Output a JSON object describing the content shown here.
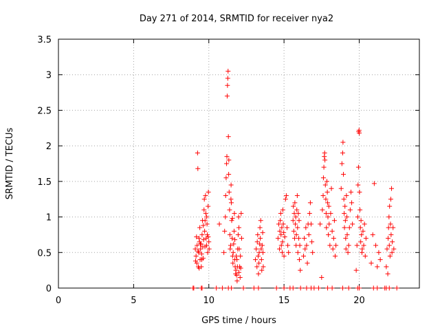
{
  "chart_data": {
    "type": "scatter",
    "title": "Day 271 of 2014, SRMTID for receiver nya2",
    "xlabel": "GPS time / hours",
    "ylabel": "SRMTID / TECUs",
    "xlim": [
      0,
      24
    ],
    "ylim": [
      0,
      3.5
    ],
    "x_ticks": [
      "0",
      "5",
      "10",
      "15",
      "20"
    ],
    "y_ticks": [
      "0",
      "0.5",
      "1",
      "1.5",
      "2",
      "2.5",
      "3",
      "3.5"
    ],
    "grid": true,
    "legend": "none",
    "marker": "plus",
    "color": "#ff0000",
    "series": [
      {
        "points": [
          [
            9.1,
            0.55
          ],
          [
            9.15,
            0.45
          ],
          [
            9.2,
            0.35
          ],
          [
            9.22,
            0.6
          ],
          [
            9.25,
            1.9
          ],
          [
            9.27,
            1.68
          ],
          [
            9.3,
            0.3
          ],
          [
            9.33,
            0.5
          ],
          [
            9.35,
            0.7
          ],
          [
            9.38,
            0.65
          ],
          [
            9.4,
            0.85
          ],
          [
            9.42,
            0.4
          ],
          [
            9.45,
            0.55
          ],
          [
            9.48,
            0.62
          ],
          [
            9.5,
            0.3
          ],
          [
            9.52,
            0.48
          ],
          [
            9.55,
            0.75
          ],
          [
            9.58,
            0.95
          ],
          [
            9.6,
            0.58
          ],
          [
            9.62,
            0.42
          ],
          [
            9.65,
            0.68
          ],
          [
            9.68,
            1.1
          ],
          [
            9.7,
            1.25
          ],
          [
            9.72,
            0.8
          ],
          [
            9.75,
            0.95
          ],
          [
            9.78,
            1.3
          ],
          [
            9.8,
            1.05
          ],
          [
            9.82,
            0.7
          ],
          [
            9.85,
            0.6
          ],
          [
            9.88,
            0.9
          ],
          [
            9.9,
            0.75
          ],
          [
            9.92,
            0.5
          ],
          [
            9.95,
            1.15
          ],
          [
            9.97,
            1.35
          ],
          [
            10.0,
            0.65
          ],
          [
            10.02,
            0.55
          ],
          [
            9.12,
            0.38
          ],
          [
            9.18,
            0.72
          ],
          [
            9.28,
            0.52
          ],
          [
            9.36,
            0.28
          ],
          [
            9.44,
            0.62
          ],
          [
            9.53,
            0.4
          ],
          [
            9.63,
            0.88
          ],
          [
            9.74,
            0.58
          ],
          [
            9.86,
            1.0
          ],
          [
            9.96,
            0.72
          ],
          [
            10.7,
            0.9
          ],
          [
            11.0,
            0.5
          ],
          [
            11.05,
            0.8
          ],
          [
            11.1,
            1.0
          ],
          [
            11.12,
            1.3
          ],
          [
            11.15,
            1.55
          ],
          [
            11.18,
            1.75
          ],
          [
            11.2,
            1.85
          ],
          [
            11.22,
            2.7
          ],
          [
            11.24,
            2.85
          ],
          [
            11.26,
            2.95
          ],
          [
            11.28,
            3.05
          ],
          [
            11.3,
            2.13
          ],
          [
            11.32,
            1.6
          ],
          [
            11.35,
            1.35
          ],
          [
            11.38,
            1.1
          ],
          [
            11.4,
            0.75
          ],
          [
            11.42,
            0.55
          ],
          [
            11.45,
            0.6
          ],
          [
            11.48,
            1.45
          ],
          [
            11.5,
            1.2
          ],
          [
            11.52,
            0.95
          ],
          [
            11.55,
            0.7
          ],
          [
            11.58,
            0.45
          ],
          [
            11.6,
            0.35
          ],
          [
            11.62,
            0.5
          ],
          [
            11.65,
            0.62
          ],
          [
            11.68,
            0.8
          ],
          [
            11.7,
            1.05
          ],
          [
            11.72,
            0.4
          ],
          [
            11.75,
            0.3
          ],
          [
            11.78,
            0.2
          ],
          [
            11.8,
            0.25
          ],
          [
            11.82,
            0.45
          ],
          [
            11.85,
            0.18
          ],
          [
            11.88,
            0.1
          ],
          [
            11.9,
            0.3
          ],
          [
            11.92,
            0.55
          ],
          [
            11.95,
            0.75
          ],
          [
            11.98,
            1.0
          ],
          [
            12.0,
            0.85
          ],
          [
            12.02,
            0.55
          ],
          [
            12.05,
            0.3
          ],
          [
            12.08,
            0.15
          ],
          [
            12.1,
            0.45
          ],
          [
            12.12,
            0.28
          ],
          [
            12.15,
            1.05
          ],
          [
            12.18,
            0.7
          ],
          [
            11.33,
            1.8
          ],
          [
            11.47,
            1.25
          ],
          [
            11.57,
            0.98
          ],
          [
            11.73,
            0.68
          ],
          [
            11.87,
            0.4
          ],
          [
            12.0,
            0.22
          ],
          [
            13.1,
            0.4
          ],
          [
            13.15,
            0.55
          ],
          [
            13.2,
            0.3
          ],
          [
            13.22,
            0.65
          ],
          [
            13.25,
            0.75
          ],
          [
            13.28,
            0.45
          ],
          [
            13.3,
            0.2
          ],
          [
            13.33,
            0.35
          ],
          [
            13.35,
            0.5
          ],
          [
            13.38,
            0.62
          ],
          [
            13.4,
            0.85
          ],
          [
            13.42,
            0.7
          ],
          [
            13.45,
            0.95
          ],
          [
            13.48,
            0.55
          ],
          [
            13.5,
            0.4
          ],
          [
            13.52,
            0.25
          ],
          [
            13.55,
            0.6
          ],
          [
            13.58,
            0.78
          ],
          [
            13.6,
            0.5
          ],
          [
            13.62,
            0.3
          ],
          [
            14.6,
            0.7
          ],
          [
            14.65,
            0.9
          ],
          [
            14.7,
            0.55
          ],
          [
            14.72,
            0.8
          ],
          [
            14.75,
            0.95
          ],
          [
            14.78,
            1.05
          ],
          [
            14.8,
            0.75
          ],
          [
            14.82,
            0.6
          ],
          [
            14.85,
            0.85
          ],
          [
            14.88,
            0.5
          ],
          [
            14.9,
            0.65
          ],
          [
            14.92,
            1.1
          ],
          [
            14.95,
            0.9
          ],
          [
            14.98,
            0.78
          ],
          [
            15.0,
            0.45
          ],
          [
            15.05,
            0.72
          ],
          [
            15.1,
            1.25
          ],
          [
            15.15,
            1.3
          ],
          [
            15.2,
            0.85
          ],
          [
            15.25,
            0.6
          ],
          [
            15.3,
            0.5
          ],
          [
            15.6,
            0.95
          ],
          [
            15.62,
            1.15
          ],
          [
            15.65,
            0.8
          ],
          [
            15.68,
            1.05
          ],
          [
            15.7,
            0.7
          ],
          [
            15.72,
            1.2
          ],
          [
            15.75,
            0.9
          ],
          [
            15.78,
            1.0
          ],
          [
            15.8,
            0.6
          ],
          [
            15.82,
            0.75
          ],
          [
            15.85,
            1.1
          ],
          [
            15.88,
            1.3
          ],
          [
            15.9,
            0.85
          ],
          [
            15.92,
            0.5
          ],
          [
            15.95,
            1.05
          ],
          [
            15.98,
            0.7
          ],
          [
            16.0,
            0.95
          ],
          [
            16.02,
            0.4
          ],
          [
            16.05,
            0.6
          ],
          [
            16.08,
            0.25
          ],
          [
            16.3,
            0.45
          ],
          [
            16.35,
            0.7
          ],
          [
            16.4,
            0.55
          ],
          [
            16.45,
            0.85
          ],
          [
            16.5,
            0.6
          ],
          [
            16.55,
            0.35
          ],
          [
            16.6,
            0.9
          ],
          [
            16.65,
            0.75
          ],
          [
            16.7,
            1.05
          ],
          [
            16.75,
            1.2
          ],
          [
            16.8,
            0.9
          ],
          [
            16.85,
            0.65
          ],
          [
            16.9,
            0.5
          ],
          [
            17.4,
            0.9
          ],
          [
            17.5,
            0.15
          ],
          [
            17.55,
            1.1
          ],
          [
            17.6,
            1.3
          ],
          [
            17.62,
            1.55
          ],
          [
            17.65,
            1.7
          ],
          [
            17.68,
            1.85
          ],
          [
            17.7,
            1.9
          ],
          [
            17.72,
            1.8
          ],
          [
            17.75,
            1.45
          ],
          [
            17.78,
            1.25
          ],
          [
            17.8,
            1.05
          ],
          [
            17.82,
            0.85
          ],
          [
            17.85,
            1.5
          ],
          [
            17.88,
            1.35
          ],
          [
            17.9,
            1.2
          ],
          [
            17.92,
            1.0
          ],
          [
            17.95,
            0.75
          ],
          [
            17.98,
            1.15
          ],
          [
            18.0,
            0.9
          ],
          [
            18.05,
            0.6
          ],
          [
            18.1,
            1.05
          ],
          [
            18.15,
            1.4
          ],
          [
            18.2,
            0.8
          ],
          [
            18.25,
            0.55
          ],
          [
            18.3,
            0.7
          ],
          [
            18.35,
            0.95
          ],
          [
            18.4,
            0.45
          ],
          [
            18.45,
            0.6
          ],
          [
            18.8,
            1.4
          ],
          [
            18.85,
            1.75
          ],
          [
            18.9,
            1.9
          ],
          [
            18.92,
            2.05
          ],
          [
            18.95,
            1.6
          ],
          [
            18.98,
            1.25
          ],
          [
            19.0,
            1.05
          ],
          [
            19.02,
            0.85
          ],
          [
            19.05,
            1.15
          ],
          [
            19.08,
            0.95
          ],
          [
            19.1,
            0.7
          ],
          [
            19.12,
            0.55
          ],
          [
            19.15,
            1.3
          ],
          [
            19.18,
            1.0
          ],
          [
            19.2,
            0.75
          ],
          [
            19.25,
            0.5
          ],
          [
            19.3,
            0.6
          ],
          [
            19.35,
            0.85
          ],
          [
            19.4,
            1.1
          ],
          [
            19.45,
            1.35
          ],
          [
            19.5,
            1.2
          ],
          [
            19.55,
            0.9
          ],
          [
            19.8,
            0.25
          ],
          [
            19.85,
            0.6
          ],
          [
            19.9,
            1.0
          ],
          [
            19.92,
            1.45
          ],
          [
            19.95,
            1.7
          ],
          [
            19.97,
            2.2
          ],
          [
            19.99,
            2.22
          ],
          [
            20.0,
            2.18
          ],
          [
            20.02,
            1.35
          ],
          [
            20.05,
            1.1
          ],
          [
            20.08,
            0.85
          ],
          [
            20.1,
            0.65
          ],
          [
            20.12,
            0.95
          ],
          [
            20.15,
            0.75
          ],
          [
            20.18,
            0.5
          ],
          [
            20.2,
            0.55
          ],
          [
            20.25,
            0.8
          ],
          [
            20.3,
            0.6
          ],
          [
            20.35,
            0.9
          ],
          [
            20.4,
            0.45
          ],
          [
            20.45,
            0.7
          ],
          [
            20.8,
            0.35
          ],
          [
            20.9,
            0.75
          ],
          [
            21.0,
            1.47
          ],
          [
            21.1,
            0.6
          ],
          [
            21.2,
            0.3
          ],
          [
            21.3,
            0.5
          ],
          [
            21.4,
            0.4
          ],
          [
            21.8,
            0.3
          ],
          [
            21.85,
            0.55
          ],
          [
            21.9,
            0.2
          ],
          [
            21.92,
            0.7
          ],
          [
            21.95,
            0.85
          ],
          [
            21.98,
            1.0
          ],
          [
            22.0,
            0.6
          ],
          [
            22.02,
            1.15
          ],
          [
            22.05,
            0.45
          ],
          [
            22.08,
            0.9
          ],
          [
            22.1,
            1.25
          ],
          [
            22.12,
            0.75
          ],
          [
            22.15,
            1.4
          ],
          [
            22.18,
            0.5
          ],
          [
            22.2,
            0.65
          ],
          [
            22.25,
            0.85
          ],
          [
            22.3,
            0.55
          ],
          [
            22.5,
            0.0
          ],
          [
            8.95,
            0.0
          ],
          [
            9.0,
            0.0
          ],
          [
            9.5,
            0.0
          ],
          [
            9.55,
            0.0
          ],
          [
            10.5,
            0.0
          ],
          [
            10.9,
            0.0
          ],
          [
            11.3,
            0.0
          ],
          [
            11.5,
            0.0
          ],
          [
            12.3,
            0.0
          ],
          [
            13.0,
            0.0
          ],
          [
            13.3,
            0.0
          ],
          [
            14.5,
            0.0
          ],
          [
            15.0,
            0.0
          ],
          [
            15.4,
            0.0
          ],
          [
            15.6,
            0.0
          ],
          [
            16.1,
            0.0
          ],
          [
            16.5,
            0.0
          ],
          [
            16.8,
            0.0
          ],
          [
            17.0,
            0.0
          ],
          [
            17.3,
            0.0
          ],
          [
            17.9,
            0.0
          ],
          [
            18.2,
            0.0
          ],
          [
            18.9,
            0.0
          ],
          [
            19.3,
            0.0
          ],
          [
            19.9,
            0.0
          ],
          [
            20.0,
            0.0
          ],
          [
            20.95,
            0.0
          ],
          [
            21.2,
            0.0
          ],
          [
            21.7,
            0.0
          ],
          [
            21.8,
            0.0
          ],
          [
            22.0,
            0.0
          ]
        ]
      }
    ]
  }
}
